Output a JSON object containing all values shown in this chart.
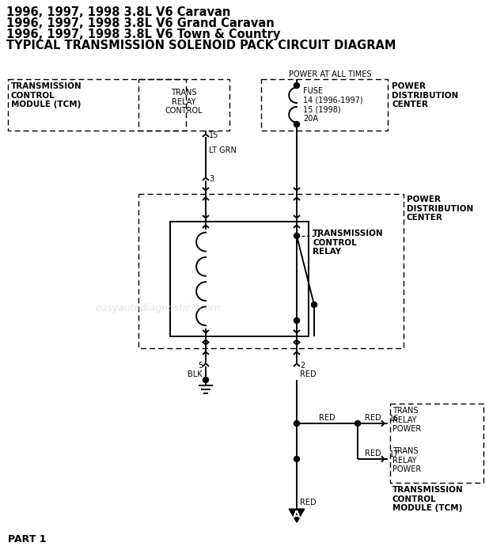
{
  "bg": "#ffffff",
  "lc": "#000000",
  "titles": [
    "1996, 1997, 1998 3.8L V6 Caravan",
    "1996, 1997, 1998 3.8L V6 Grand Caravan",
    "1996, 1997, 1998 3.8L V6 Town & Country",
    "TYPICAL TRANSMISSION SOLENOID PACK CIRCUIT DIAGRAM"
  ],
  "watermark": "easyautodiagnostics.com",
  "part_label": "PART 1",
  "label_A": "A"
}
